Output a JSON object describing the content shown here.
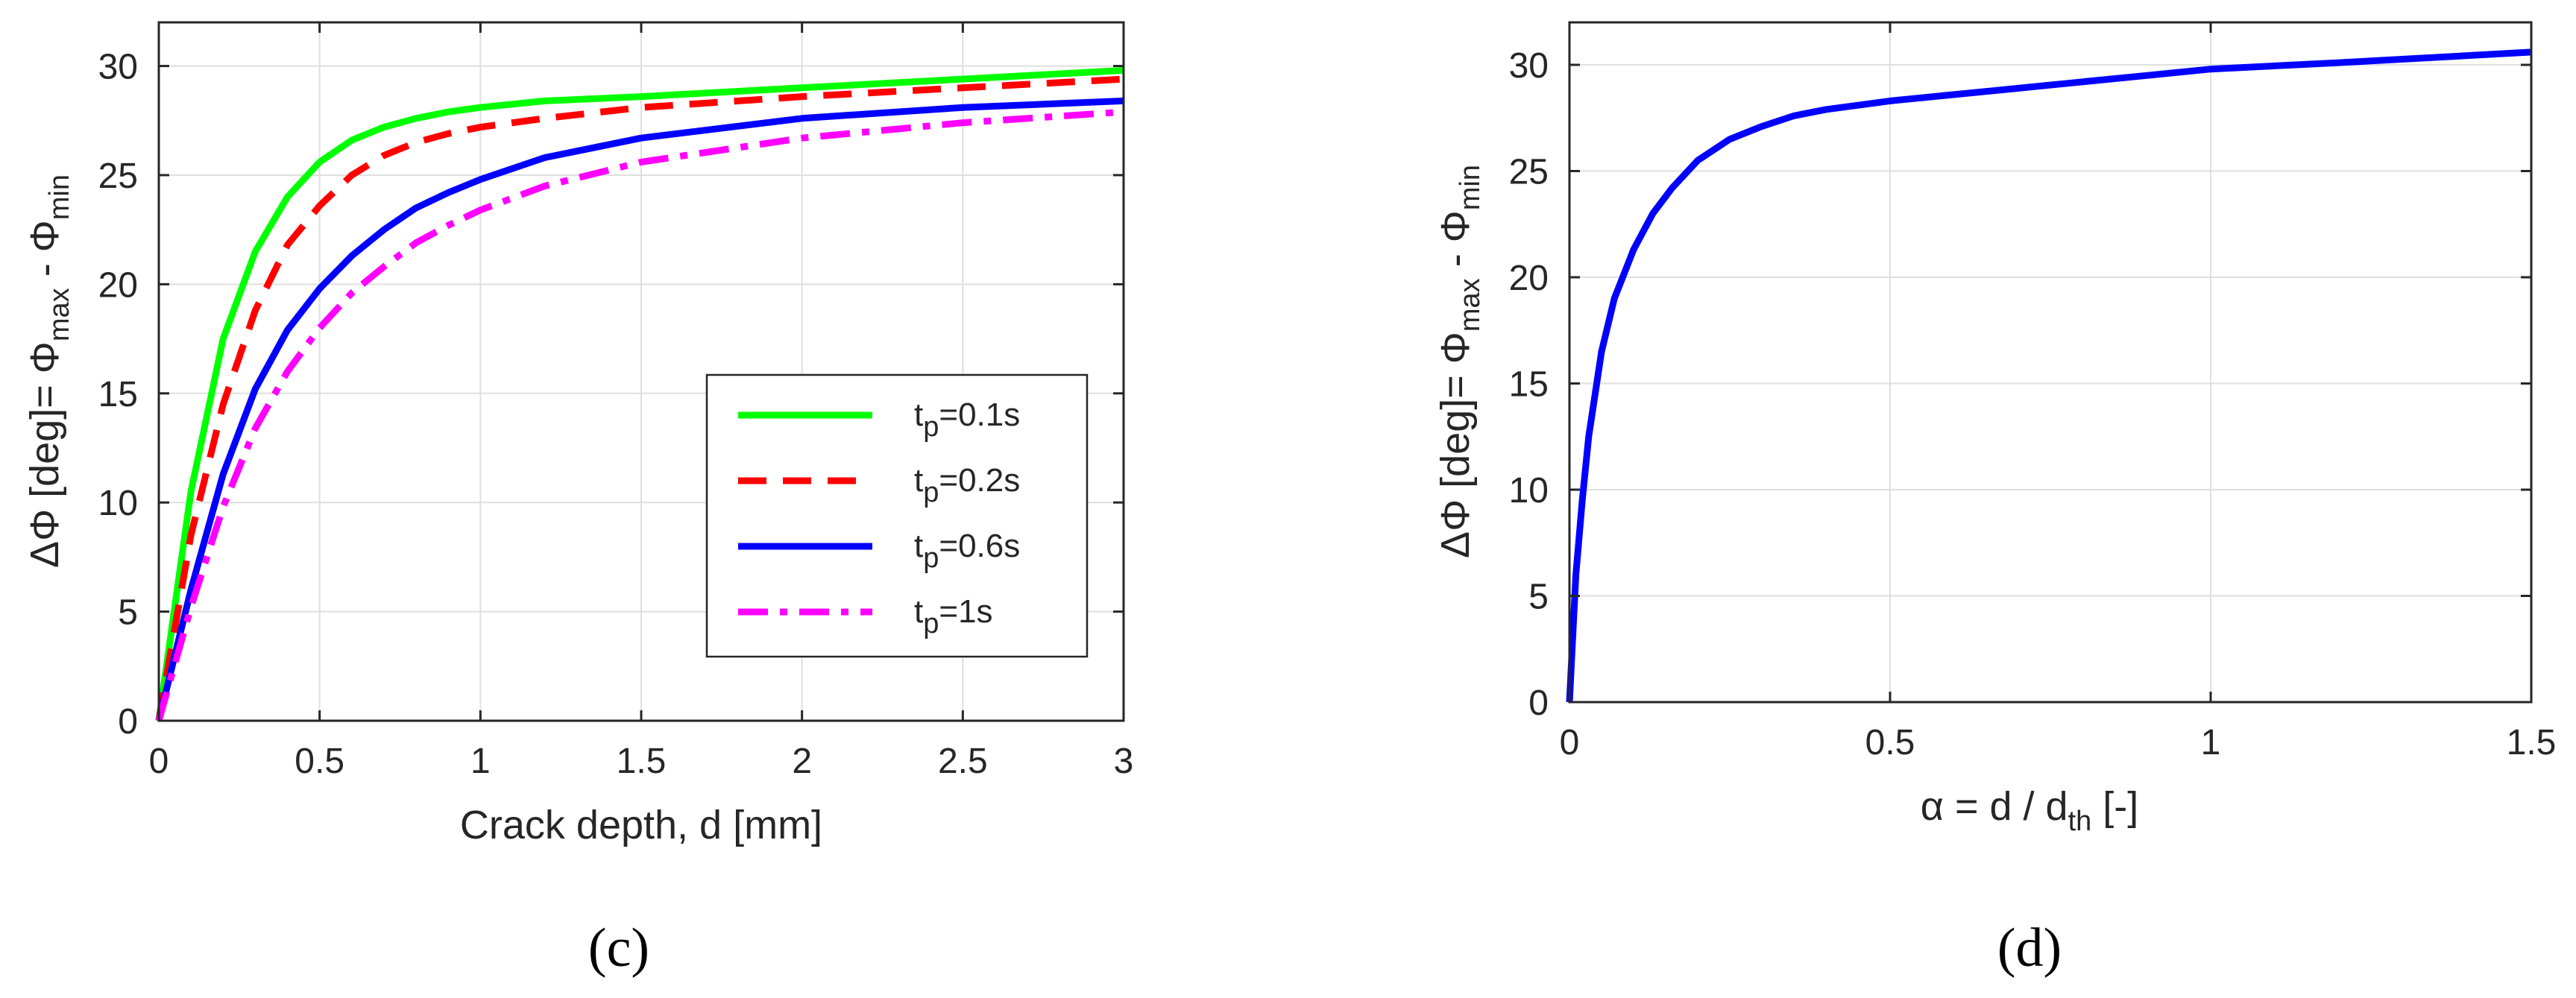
{
  "chart_data": [
    {
      "type": "line",
      "caption": "(c)",
      "xlabel": "Crack depth, d [mm]",
      "ylabel": {
        "pre": "ΔΦ [deg]= Φ",
        "sub1": "max",
        "mid": " - Φ",
        "sub2": "min"
      },
      "xlim": [
        0,
        3
      ],
      "ylim": [
        0,
        32
      ],
      "xticks": [
        0,
        0.5,
        1,
        1.5,
        2,
        2.5,
        3
      ],
      "xtick_labels": [
        "0",
        "0.5",
        "1",
        "1.5",
        "2",
        "2.5",
        "3"
      ],
      "yticks": [
        0,
        5,
        10,
        15,
        20,
        25,
        30
      ],
      "ytick_labels": [
        "0",
        "5",
        "10",
        "15",
        "20",
        "25",
        "30"
      ],
      "grid": true,
      "legend_position": "center-right",
      "series": [
        {
          "name": "t_p=0.1s",
          "label_main": "t",
          "label_sub": "p",
          "label_rest": "=0.1s",
          "color": "#00ff00",
          "style": "solid",
          "x": [
            0,
            0.1,
            0.2,
            0.3,
            0.4,
            0.5,
            0.6,
            0.7,
            0.8,
            0.9,
            1.0,
            1.2,
            1.5,
            2.0,
            2.5,
            3.0
          ],
          "y": [
            0,
            10.5,
            17.5,
            21.5,
            24.0,
            25.6,
            26.6,
            27.2,
            27.6,
            27.9,
            28.1,
            28.4,
            28.6,
            29.0,
            29.4,
            29.8
          ]
        },
        {
          "name": "t_p=0.2s",
          "label_main": "t",
          "label_sub": "p",
          "label_rest": "=0.2s",
          "color": "#ff0000",
          "style": "dashed",
          "x": [
            0,
            0.1,
            0.2,
            0.3,
            0.4,
            0.5,
            0.6,
            0.7,
            0.8,
            0.9,
            1.0,
            1.2,
            1.5,
            2.0,
            2.5,
            3.0
          ],
          "y": [
            0,
            8.5,
            14.5,
            18.8,
            21.8,
            23.6,
            25.0,
            25.9,
            26.5,
            26.9,
            27.2,
            27.6,
            28.1,
            28.6,
            29.0,
            29.4
          ]
        },
        {
          "name": "t_p=0.6s",
          "label_main": "t",
          "label_sub": "p",
          "label_rest": "=0.6s",
          "color": "#0000ff",
          "style": "solid",
          "x": [
            0,
            0.1,
            0.2,
            0.3,
            0.4,
            0.5,
            0.6,
            0.7,
            0.8,
            0.9,
            1.0,
            1.2,
            1.5,
            2.0,
            2.5,
            3.0
          ],
          "y": [
            0,
            6.0,
            11.3,
            15.2,
            17.9,
            19.8,
            21.3,
            22.5,
            23.5,
            24.2,
            24.8,
            25.8,
            26.7,
            27.6,
            28.1,
            28.4
          ]
        },
        {
          "name": "t_p=1s",
          "label_main": "t",
          "label_sub": "p",
          "label_rest": "=1s",
          "color": "#ff00ff",
          "style": "dashdot",
          "x": [
            0,
            0.1,
            0.2,
            0.3,
            0.4,
            0.5,
            0.6,
            0.7,
            0.8,
            0.9,
            1.0,
            1.2,
            1.5,
            2.0,
            2.5,
            3.0
          ],
          "y": [
            0,
            5.2,
            9.8,
            13.4,
            16.0,
            18.0,
            19.6,
            20.8,
            21.9,
            22.7,
            23.4,
            24.5,
            25.6,
            26.7,
            27.4,
            27.9
          ]
        }
      ]
    },
    {
      "type": "line",
      "caption": "(d)",
      "xlabel": {
        "pre": "α = d / d",
        "sub": "th",
        "post": " [-]"
      },
      "ylabel": {
        "pre": "ΔΦ [deg]= Φ",
        "sub1": "max",
        "mid": " - Φ",
        "sub2": "min"
      },
      "xlim": [
        0,
        1.5
      ],
      "ylim": [
        0,
        32
      ],
      "xticks": [
        0,
        0.5,
        1,
        1.5
      ],
      "xtick_labels": [
        "0",
        "0.5",
        "1",
        "1.5"
      ],
      "yticks": [
        0,
        5,
        10,
        15,
        20,
        25,
        30
      ],
      "ytick_labels": [
        "0",
        "5",
        "10",
        "15",
        "20",
        "25",
        "30"
      ],
      "grid": true,
      "series": [
        {
          "name": "ΔΦ",
          "color": "#0000ff",
          "style": "solid",
          "x": [
            0,
            0.01,
            0.02,
            0.03,
            0.05,
            0.07,
            0.1,
            0.13,
            0.16,
            0.2,
            0.25,
            0.3,
            0.35,
            0.4,
            0.5,
            0.6,
            0.7,
            0.8,
            0.9,
            1.0,
            1.2,
            1.5
          ],
          "y": [
            0,
            6.0,
            9.5,
            12.5,
            16.5,
            19.0,
            21.3,
            23.0,
            24.2,
            25.5,
            26.5,
            27.1,
            27.6,
            27.9,
            28.3,
            28.6,
            28.9,
            29.2,
            29.5,
            29.8,
            30.1,
            30.6
          ]
        }
      ]
    }
  ]
}
